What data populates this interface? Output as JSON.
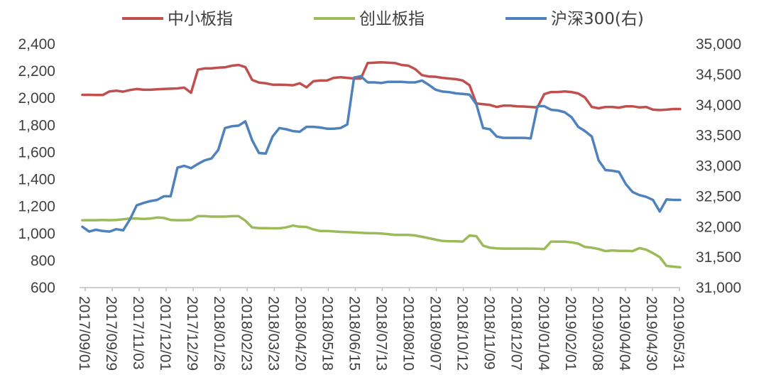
{
  "chart_data": {
    "type": "line",
    "title": "",
    "legend_position": "top",
    "grid": false,
    "x_tick_labels": [
      "2017/09/01",
      "2017/09/29",
      "2017/11/03",
      "2017/12/01",
      "2017/12/29",
      "2018/01/26",
      "2018/02/23",
      "2018/03/23",
      "2018/04/20",
      "2018/05/18",
      "2018/06/15",
      "2018/07/13",
      "2018/08/10",
      "2018/09/07",
      "2018/10/12",
      "2018/11/09",
      "2018/12/07",
      "2019/01/04",
      "2019/02/01",
      "2019/03/08",
      "2019/04/04",
      "2019/04/30",
      "2019/05/31"
    ],
    "y_left": {
      "min": 600,
      "max": 2400,
      "ticks": [
        "600",
        "800",
        "1,000",
        "1,200",
        "1,400",
        "1,600",
        "1,800",
        "2,000",
        "2,200",
        "2,400"
      ]
    },
    "y_right": {
      "min": 31000,
      "max": 35000,
      "ticks": [
        "31,000",
        "31,500",
        "32,000",
        "32,500",
        "33,000",
        "33,500",
        "34,000",
        "34,500",
        "35,000"
      ]
    },
    "series": [
      {
        "name": "中小板指",
        "axis": "left",
        "color": "#c0504d",
        "values": [
          2025,
          2025,
          2023,
          2023,
          2050,
          2055,
          2048,
          2060,
          2068,
          2062,
          2062,
          2065,
          2068,
          2070,
          2072,
          2078,
          2040,
          2210,
          2220,
          2220,
          2225,
          2228,
          2240,
          2245,
          2230,
          2135,
          2115,
          2110,
          2100,
          2100,
          2098,
          2095,
          2110,
          2080,
          2125,
          2130,
          2130,
          2150,
          2155,
          2150,
          2145,
          2145,
          2260,
          2262,
          2265,
          2262,
          2260,
          2245,
          2240,
          2215,
          2170,
          2160,
          2158,
          2150,
          2145,
          2140,
          2130,
          2095,
          1960,
          1955,
          1950,
          1935,
          1945,
          1945,
          1940,
          1938,
          1935,
          1932,
          2030,
          2045,
          2045,
          2050,
          2045,
          2035,
          2005,
          1935,
          1925,
          1935,
          1935,
          1930,
          1940,
          1940,
          1932,
          1935,
          1915,
          1912,
          1915,
          1920,
          1920
        ]
      },
      {
        "name": "创业板指",
        "axis": "left",
        "color": "#9bbb59",
        "values": [
          1098,
          1098,
          1098,
          1100,
          1098,
          1100,
          1105,
          1110,
          1110,
          1108,
          1110,
          1118,
          1115,
          1100,
          1098,
          1098,
          1100,
          1128,
          1128,
          1125,
          1125,
          1125,
          1128,
          1128,
          1095,
          1045,
          1040,
          1040,
          1038,
          1038,
          1045,
          1058,
          1050,
          1048,
          1030,
          1018,
          1018,
          1015,
          1012,
          1010,
          1008,
          1005,
          1002,
          1002,
          1000,
          995,
          990,
          990,
          990,
          985,
          975,
          965,
          955,
          945,
          942,
          942,
          940,
          985,
          980,
          910,
          895,
          890,
          888,
          888,
          888,
          888,
          888,
          887,
          885,
          940,
          940,
          940,
          935,
          925,
          900,
          895,
          885,
          870,
          875,
          872,
          872,
          870,
          892,
          880,
          855,
          825,
          760,
          755,
          750
        ]
      },
      {
        "name": "沪深300(右)",
        "axis": "right",
        "color": "#4f81bd",
        "values": [
          32000,
          31920,
          31950,
          31930,
          31920,
          31960,
          31940,
          32120,
          32350,
          32390,
          32420,
          32440,
          32500,
          32500,
          32970,
          33000,
          32960,
          33030,
          33090,
          33120,
          33260,
          33620,
          33650,
          33660,
          33730,
          33420,
          33210,
          33200,
          33480,
          33620,
          33600,
          33570,
          33560,
          33640,
          33640,
          33630,
          33610,
          33610,
          33620,
          33680,
          34450,
          34470,
          34370,
          34370,
          34360,
          34380,
          34380,
          34380,
          34370,
          34370,
          34400,
          34330,
          34250,
          34220,
          34210,
          34190,
          34180,
          34170,
          34010,
          33620,
          33600,
          33480,
          33460,
          33460,
          33460,
          33460,
          33450,
          33980,
          33980,
          33920,
          33910,
          33880,
          33800,
          33640,
          33570,
          33480,
          33090,
          32930,
          32920,
          32900,
          32700,
          32570,
          32520,
          32490,
          32440,
          32250,
          32450,
          32440,
          32440
        ]
      }
    ]
  }
}
